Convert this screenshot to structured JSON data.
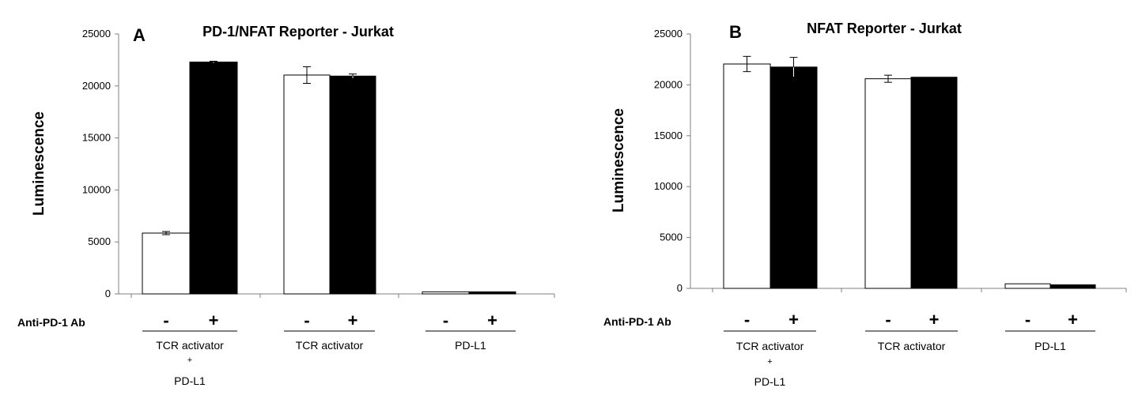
{
  "treatment_label": "Anti-PD-1 Ab",
  "colors": {
    "minus_fill": "#ffffff",
    "plus_fill": "#000000",
    "axis": "#7f7f7f"
  },
  "chart_data": [
    {
      "type": "bar",
      "panel_letter": "A",
      "title": "PD-1/NFAT Reporter - Jurkat",
      "ylabel": "Luminescence",
      "xlabel": "",
      "ylim": [
        0,
        25000
      ],
      "yticks": [
        0,
        5000,
        10000,
        15000,
        20000,
        25000
      ],
      "ytick_labels": [
        "0",
        "5000",
        "10000",
        "15000",
        "20000",
        "25000"
      ],
      "grid": false,
      "series_signs": [
        "-",
        "+"
      ],
      "categories": [
        {
          "lines": [
            "TCR activator",
            "+",
            "PD-L1"
          ]
        },
        {
          "lines": [
            "TCR activator"
          ]
        },
        {
          "lines": [
            "PD-L1"
          ]
        }
      ],
      "series": [
        {
          "values": [
            5850,
            21050,
            200
          ],
          "errors": [
            150,
            800,
            0
          ]
        },
        {
          "values": [
            22300,
            20950,
            200
          ],
          "errors": [
            80,
            200,
            0
          ]
        }
      ]
    },
    {
      "type": "bar",
      "panel_letter": "B",
      "title": "NFAT Reporter - Jurkat",
      "ylabel": "Luminescence",
      "xlabel": "",
      "ylim": [
        0,
        25000
      ],
      "yticks": [
        0,
        5000,
        10000,
        15000,
        20000,
        25000
      ],
      "ytick_labels": [
        "0",
        "5000",
        "10000",
        "15000",
        "20000",
        "25000"
      ],
      "grid": false,
      "series_signs": [
        "-",
        "+"
      ],
      "categories": [
        {
          "lines": [
            "TCR activator",
            "+",
            "PD-L1"
          ]
        },
        {
          "lines": [
            "TCR activator"
          ]
        },
        {
          "lines": [
            "PD-L1"
          ]
        }
      ],
      "series": [
        {
          "values": [
            22050,
            20600,
            450
          ],
          "errors": [
            750,
            350,
            0
          ]
        },
        {
          "values": [
            21750,
            20750,
            350
          ],
          "errors": [
            950,
            0,
            0
          ]
        }
      ]
    }
  ]
}
